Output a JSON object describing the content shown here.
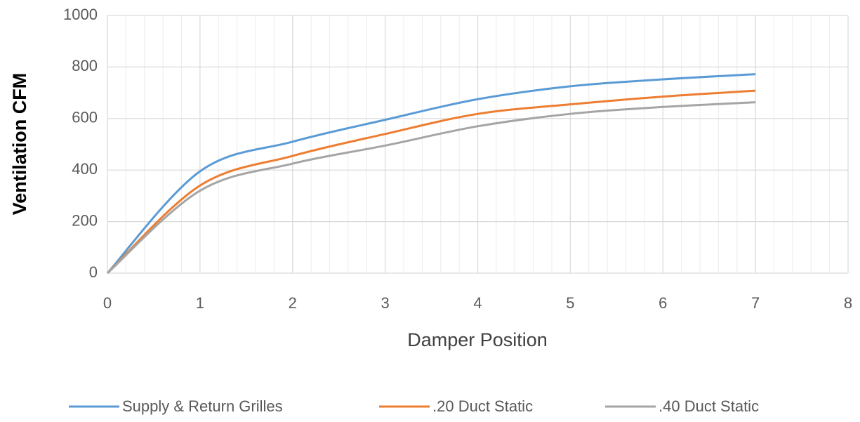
{
  "chart_data": {
    "type": "line",
    "x_label": "Damper Position",
    "y_label": "Ventilation CFM",
    "x": [
      0,
      1,
      2,
      3,
      4,
      5,
      6,
      7
    ],
    "series": [
      {
        "name": "Supply & Return Grilles",
        "color": "#5b9bd5",
        "values": [
          0,
          395,
          510,
          595,
          675,
          725,
          752,
          772
        ]
      },
      {
        "name": ".20 Duct Static",
        "color": "#ed7d31",
        "values": [
          0,
          340,
          455,
          540,
          618,
          655,
          685,
          708
        ]
      },
      {
        "name": ".40 Duct Static",
        "color": "#a5a5a5",
        "values": [
          0,
          320,
          425,
          495,
          570,
          618,
          645,
          663
        ]
      }
    ],
    "xlim": [
      0,
      8
    ],
    "xticks": [
      0,
      1,
      2,
      3,
      4,
      5,
      6,
      7,
      8
    ],
    "ylim": [
      0,
      1000
    ],
    "yticks": [
      0,
      200,
      400,
      600,
      800,
      1000
    ],
    "grid": true,
    "smooth": true,
    "legend": "bottom"
  }
}
